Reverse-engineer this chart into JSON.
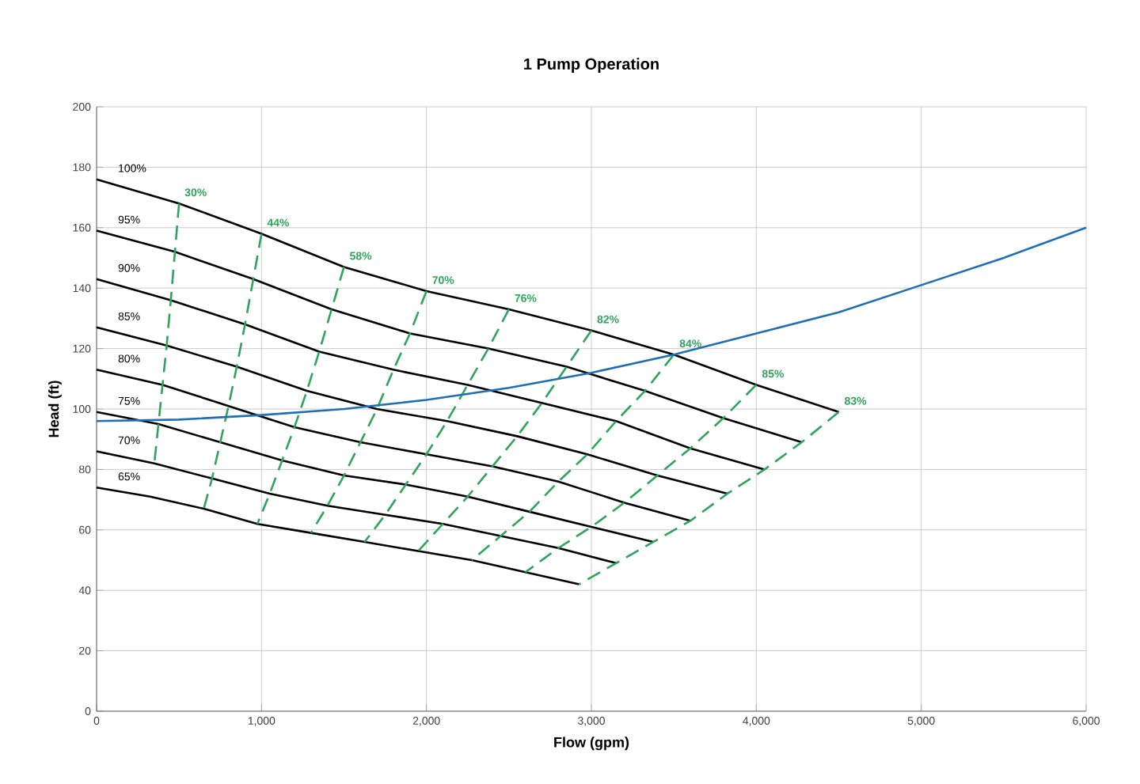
{
  "chart_data": {
    "type": "line",
    "title": "1 Pump Operation",
    "xlabel": "Flow (gpm)",
    "ylabel": "Head (ft)",
    "xlim": [
      0,
      6000
    ],
    "ylim": [
      0,
      200
    ],
    "xticks": [
      0,
      {
        "value": 1000,
        "label": "1,000"
      },
      {
        "value": 2000,
        "label": "2,000"
      },
      {
        "value": 3000,
        "label": "3,000"
      },
      {
        "value": 4000,
        "label": "4,000"
      },
      {
        "value": 5000,
        "label": "5,000"
      },
      {
        "value": 6000,
        "label": "6,000"
      }
    ],
    "yticks": [
      0,
      20,
      40,
      60,
      80,
      100,
      120,
      140,
      160,
      180,
      200
    ],
    "grid": true,
    "marker": "none",
    "line_style": "solid",
    "series": [
      {
        "name": "100%",
        "color": "#000000",
        "x": [
          0,
          500,
          1000,
          1500,
          2000,
          2500,
          3000,
          3500,
          4000,
          4500
        ],
        "values": [
          176,
          168,
          158,
          147,
          139,
          133,
          126,
          118,
          108,
          99
        ]
      },
      {
        "name": "95%",
        "color": "#000000",
        "x": [
          0,
          475,
          950,
          1425,
          1900,
          2375,
          2850,
          3325,
          3800,
          4275
        ],
        "values": [
          159,
          152,
          143,
          133,
          125,
          120,
          114,
          106,
          97,
          89
        ]
      },
      {
        "name": "90%",
        "color": "#000000",
        "x": [
          0,
          450,
          900,
          1350,
          1800,
          2250,
          2700,
          3150,
          3600,
          4050
        ],
        "values": [
          143,
          136,
          128,
          119,
          113,
          108,
          102,
          96,
          87,
          80
        ]
      },
      {
        "name": "85%",
        "color": "#000000",
        "x": [
          0,
          425,
          850,
          1275,
          1700,
          2125,
          2550,
          2975,
          3400,
          3825
        ],
        "values": [
          127,
          121,
          114,
          106,
          100,
          96,
          91,
          85,
          78,
          72
        ]
      },
      {
        "name": "80%",
        "color": "#000000",
        "x": [
          0,
          400,
          800,
          1200,
          1600,
          2000,
          2400,
          2800,
          3200,
          3600
        ],
        "values": [
          113,
          108,
          101,
          94,
          89,
          85,
          81,
          76,
          69,
          63
        ]
      },
      {
        "name": "75%",
        "color": "#000000",
        "x": [
          0,
          375,
          750,
          1125,
          1500,
          1875,
          2250,
          2625,
          3000,
          3375
        ],
        "values": [
          99,
          95,
          89,
          83,
          78,
          75,
          71,
          66,
          61,
          56
        ]
      },
      {
        "name": "70%",
        "color": "#000000",
        "x": [
          0,
          350,
          700,
          1050,
          1400,
          1750,
          2100,
          2450,
          2800,
          3150
        ],
        "values": [
          86,
          82,
          77,
          72,
          68,
          65,
          62,
          58,
          54,
          49
        ]
      },
      {
        "name": "65%",
        "color": "#000000",
        "x": [
          0,
          325,
          650,
          975,
          1300,
          1625,
          1950,
          2275,
          2600,
          2925
        ],
        "values": [
          74,
          71,
          67,
          62,
          59,
          56,
          53,
          50,
          46,
          42
        ]
      },
      {
        "name": "30%",
        "color": "#2ea55a",
        "line_style": "dashed",
        "x": [
          500,
          475,
          450,
          425,
          400,
          375,
          350
        ],
        "values": [
          168,
          152,
          136,
          121,
          108,
          95,
          82
        ]
      },
      {
        "name": "44%",
        "color": "#2ea55a",
        "line_style": "dashed",
        "x": [
          1000,
          950,
          900,
          850,
          800,
          750,
          700,
          650
        ],
        "values": [
          158,
          143,
          128,
          114,
          101,
          89,
          77,
          67
        ]
      },
      {
        "name": "58%",
        "color": "#2ea55a",
        "line_style": "dashed",
        "x": [
          1500,
          1425,
          1350,
          1275,
          1200,
          1125,
          1050,
          975
        ],
        "values": [
          147,
          133,
          119,
          106,
          94,
          83,
          72,
          62
        ]
      },
      {
        "name": "70%",
        "color": "#2ea55a",
        "line_style": "dashed",
        "x": [
          2000,
          1900,
          1800,
          1700,
          1600,
          1500,
          1400,
          1300
        ],
        "values": [
          139,
          125,
          113,
          100,
          89,
          78,
          68,
          59
        ]
      },
      {
        "name": "76%",
        "color": "#2ea55a",
        "line_style": "dashed",
        "x": [
          2500,
          2375,
          2250,
          2125,
          2000,
          1875,
          1750,
          1625
        ],
        "values": [
          133,
          120,
          108,
          96,
          85,
          75,
          65,
          56
        ]
      },
      {
        "name": "82%",
        "color": "#2ea55a",
        "line_style": "dashed",
        "x": [
          3000,
          2850,
          2700,
          2550,
          2400,
          2250,
          2100,
          1950
        ],
        "values": [
          126,
          114,
          102,
          91,
          81,
          71,
          62,
          53
        ]
      },
      {
        "name": "84%",
        "color": "#2ea55a",
        "line_style": "dashed",
        "x": [
          3500,
          3325,
          3150,
          2975,
          2800,
          2625,
          2450,
          2275
        ],
        "values": [
          118,
          106,
          96,
          85,
          76,
          66,
          58,
          50
        ]
      },
      {
        "name": "85%",
        "color": "#2ea55a",
        "line_style": "dashed",
        "x": [
          4000,
          3800,
          3600,
          3400,
          3200,
          3000,
          2800,
          2600
        ],
        "values": [
          108,
          97,
          87,
          78,
          69,
          61,
          54,
          46
        ]
      },
      {
        "name": "83%",
        "color": "#2ea55a",
        "line_style": "dashed",
        "x": [
          4500,
          4275,
          4050,
          3825,
          3600,
          3375,
          3150,
          2925
        ],
        "values": [
          99,
          89,
          80,
          72,
          63,
          56,
          49,
          42
        ]
      },
      {
        "color": "#1f6fb4",
        "x": [
          0,
          500,
          1000,
          1500,
          2000,
          2500,
          3000,
          3500,
          4000,
          4500,
          5000,
          5500,
          6000
        ],
        "values": [
          96,
          96.5,
          98,
          100,
          103,
          107,
          112,
          118,
          125,
          132,
          141,
          150,
          160
        ]
      }
    ]
  }
}
